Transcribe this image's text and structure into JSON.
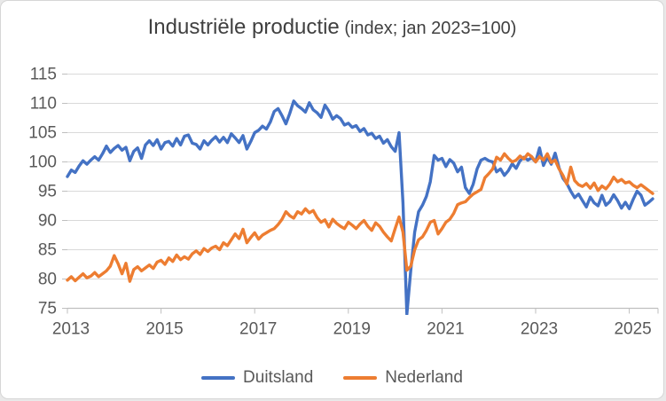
{
  "chart": {
    "title_main": "Industriële productie",
    "title_sub": " (index; jan 2023=100)"
  },
  "colors": {
    "duitsland": "#4472C4",
    "nederland": "#ED7D31",
    "gridline": "#D9D9D9",
    "axis_line": "#BFBFBF",
    "tick_text": "#595959",
    "title_text": "#404040"
  },
  "chart_data": {
    "type": "line",
    "title": "Industriële productie (index; jan 2023=100)",
    "x_start": "2013-01",
    "x_end": "2025-07",
    "x_tick_labels": [
      "2013",
      "2015",
      "2017",
      "2019",
      "2021",
      "2023",
      "2025"
    ],
    "x_tick_interval_years": 2,
    "y_ticks": [
      75,
      80,
      85,
      90,
      95,
      100,
      105,
      110,
      115
    ],
    "ylim": [
      75,
      115
    ],
    "grid": "horizontal",
    "legend_position": "bottom",
    "series": [
      {
        "name": "Duitsland",
        "color": "#4472C4",
        "values": [
          97.5,
          98.6,
          98.2,
          99.3,
          100.2,
          99.6,
          100.3,
          100.9,
          100.3,
          101.4,
          102.7,
          101.6,
          102.3,
          102.8,
          102.0,
          102.5,
          100.2,
          101.8,
          102.4,
          100.6,
          102.9,
          103.6,
          102.8,
          103.8,
          102.2,
          103.3,
          103.5,
          102.7,
          104.0,
          102.9,
          104.4,
          104.6,
          103.2,
          103.0,
          102.2,
          103.6,
          102.9,
          103.7,
          104.3,
          103.4,
          104.2,
          103.3,
          104.8,
          104.1,
          103.3,
          104.5,
          102.2,
          103.5,
          105.0,
          105.4,
          106.1,
          105.6,
          106.8,
          108.6,
          109.1,
          107.9,
          106.5,
          108.3,
          110.4,
          109.6,
          109.1,
          108.5,
          110.1,
          108.9,
          108.4,
          107.6,
          109.7,
          108.7,
          107.3,
          107.9,
          107.4,
          106.3,
          106.6,
          105.9,
          106.2,
          105.2,
          105.7,
          104.6,
          104.9,
          104.0,
          104.4,
          103.2,
          103.8,
          102.6,
          101.8,
          105.0,
          93.0,
          74.0,
          81.5,
          88.0,
          91.5,
          92.6,
          94.1,
          96.6,
          101.1,
          100.3,
          100.6,
          99.2,
          100.4,
          99.8,
          98.3,
          99.1,
          95.6,
          94.6,
          96.2,
          98.8,
          100.3,
          100.6,
          100.2,
          100.0,
          98.3,
          98.8,
          97.7,
          98.5,
          99.7,
          98.9,
          100.2,
          100.8,
          100.3,
          100.7,
          100.0,
          102.4,
          99.4,
          100.8,
          99.6,
          101.5,
          99.0,
          97.2,
          96.3,
          95.0,
          93.9,
          94.5,
          93.4,
          92.3,
          94.0,
          93.0,
          92.5,
          94.3,
          92.6,
          93.2,
          94.4,
          93.4,
          92.1,
          93.1,
          92.0,
          93.6,
          95.0,
          94.3,
          92.6,
          93.1,
          93.7
        ]
      },
      {
        "name": "Nederland",
        "color": "#ED7D31",
        "values": [
          79.8,
          80.4,
          79.7,
          80.3,
          80.9,
          80.2,
          80.5,
          81.1,
          80.4,
          80.9,
          81.4,
          82.2,
          84.0,
          82.6,
          80.9,
          82.7,
          79.6,
          81.6,
          82.1,
          81.4,
          81.9,
          82.4,
          81.8,
          82.9,
          83.2,
          82.5,
          83.6,
          83.0,
          84.1,
          83.3,
          83.8,
          83.4,
          84.3,
          84.8,
          84.2,
          85.2,
          84.7,
          85.3,
          85.6,
          85.0,
          86.2,
          85.7,
          86.7,
          87.7,
          86.9,
          88.5,
          86.2,
          87.1,
          87.9,
          86.8,
          87.5,
          87.9,
          88.3,
          88.6,
          89.3,
          90.2,
          91.5,
          90.8,
          90.4,
          91.5,
          91.1,
          92.0,
          91.3,
          91.7,
          90.5,
          89.7,
          90.1,
          88.9,
          90.2,
          89.5,
          89.0,
          88.6,
          89.7,
          89.2,
          88.6,
          89.4,
          90.0,
          89.0,
          88.3,
          89.6,
          89.0,
          88.0,
          87.2,
          86.5,
          88.6,
          90.6,
          88.0,
          81.5,
          82.2,
          85.0,
          86.7,
          87.2,
          88.3,
          89.7,
          90.0,
          87.7,
          88.6,
          89.7,
          90.2,
          91.2,
          92.7,
          93.0,
          93.2,
          93.9,
          94.5,
          94.9,
          95.3,
          97.3,
          98.0,
          98.8,
          100.8,
          100.3,
          101.4,
          100.6,
          100.0,
          100.3,
          101.0,
          100.5,
          101.4,
          100.9,
          100.0,
          100.9,
          100.3,
          101.4,
          99.9,
          100.3,
          98.8,
          97.7,
          96.2,
          99.1,
          96.8,
          96.1,
          95.8,
          96.3,
          95.5,
          96.4,
          95.1,
          95.9,
          95.4,
          96.2,
          97.4,
          96.6,
          97.0,
          96.4,
          96.6,
          96.0,
          95.6,
          96.1,
          95.6,
          95.1,
          94.6
        ]
      }
    ]
  }
}
